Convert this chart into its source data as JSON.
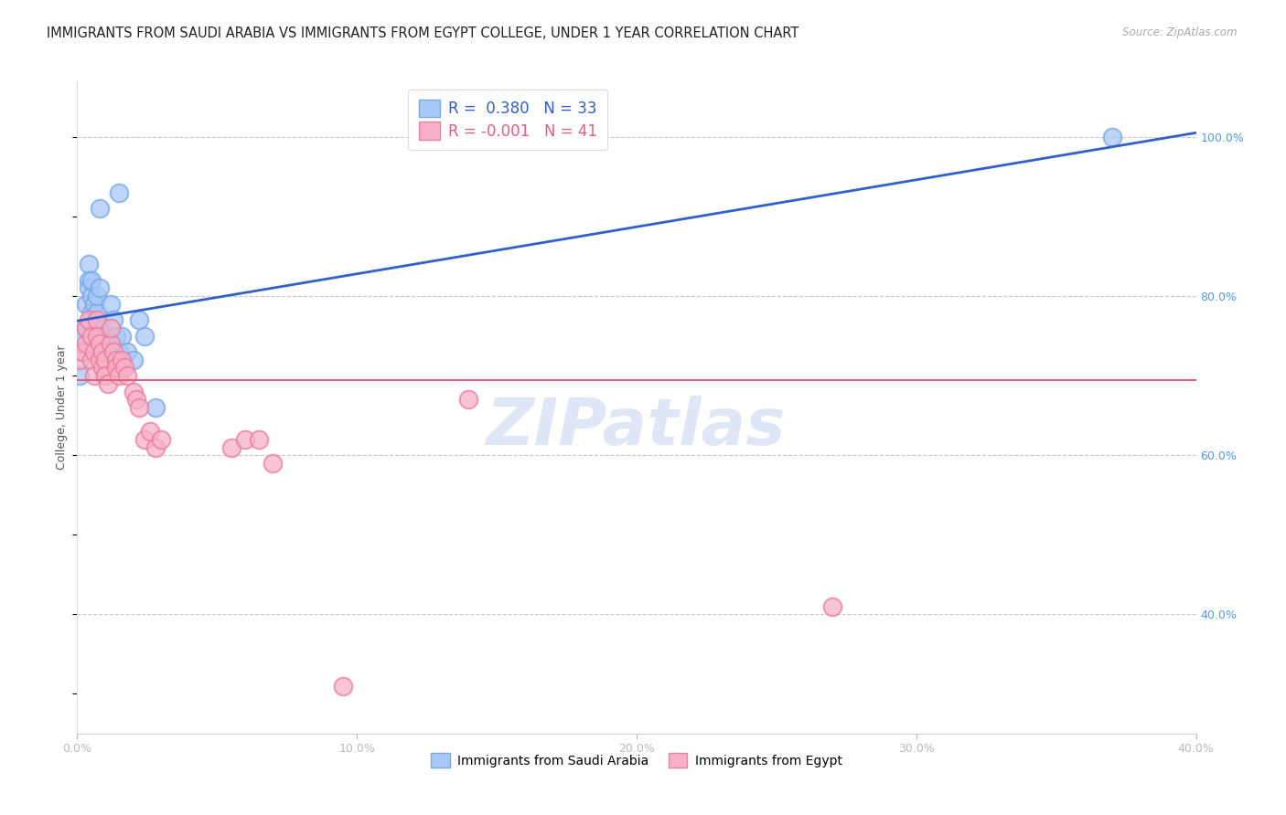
{
  "title": "IMMIGRANTS FROM SAUDI ARABIA VS IMMIGRANTS FROM EGYPT COLLEGE, UNDER 1 YEAR CORRELATION CHART",
  "source": "Source: ZipAtlas.com",
  "ylabel": "College, Under 1 year",
  "r_saudi": 0.38,
  "n_saudi": 33,
  "r_egypt": -0.001,
  "n_egypt": 41,
  "saudi_color": "#a8c8f8",
  "saudi_edge": "#78a8e8",
  "egypt_color": "#f8b0c8",
  "egypt_edge": "#e880a0",
  "blue_line_color": "#3060c8",
  "pink_line_color": "#e06080",
  "grid_color": "#c8c8c8",
  "background_color": "#ffffff",
  "xlim": [
    0.0,
    0.4
  ],
  "ylim": [
    0.25,
    1.07
  ],
  "right_yticks": [
    0.4,
    0.6,
    0.8,
    1.0
  ],
  "right_yticklabels": [
    "40.0%",
    "60.0%",
    "80.0%",
    "100.0%"
  ],
  "xticks": [
    0.0,
    0.1,
    0.2,
    0.3,
    0.4
  ],
  "xticklabels": [
    "0.0%",
    "10.0%",
    "20.0%",
    "30.0%",
    "40.0%"
  ],
  "watermark": "ZIPatlas",
  "saudi_x": [
    0.001,
    0.002,
    0.002,
    0.003,
    0.003,
    0.004,
    0.004,
    0.004,
    0.005,
    0.005,
    0.005,
    0.006,
    0.006,
    0.007,
    0.007,
    0.008,
    0.009,
    0.009,
    0.01,
    0.011,
    0.012,
    0.013,
    0.014,
    0.015,
    0.015,
    0.016,
    0.018,
    0.02,
    0.022,
    0.024,
    0.028,
    0.008,
    0.37
  ],
  "saudi_y": [
    0.7,
    0.73,
    0.75,
    0.76,
    0.79,
    0.84,
    0.82,
    0.81,
    0.78,
    0.8,
    0.82,
    0.79,
    0.76,
    0.78,
    0.8,
    0.81,
    0.76,
    0.75,
    0.74,
    0.73,
    0.79,
    0.77,
    0.75,
    0.93,
    0.73,
    0.75,
    0.73,
    0.72,
    0.77,
    0.75,
    0.66,
    0.91,
    1.0
  ],
  "egypt_x": [
    0.001,
    0.002,
    0.003,
    0.003,
    0.004,
    0.005,
    0.005,
    0.006,
    0.006,
    0.007,
    0.007,
    0.008,
    0.008,
    0.009,
    0.009,
    0.01,
    0.01,
    0.011,
    0.012,
    0.012,
    0.013,
    0.014,
    0.014,
    0.015,
    0.016,
    0.017,
    0.018,
    0.02,
    0.021,
    0.022,
    0.024,
    0.026,
    0.028,
    0.03,
    0.055,
    0.06,
    0.065,
    0.07,
    0.095,
    0.14,
    0.27
  ],
  "egypt_y": [
    0.72,
    0.73,
    0.74,
    0.76,
    0.77,
    0.75,
    0.72,
    0.73,
    0.7,
    0.77,
    0.75,
    0.74,
    0.72,
    0.71,
    0.73,
    0.72,
    0.7,
    0.69,
    0.74,
    0.76,
    0.73,
    0.72,
    0.71,
    0.7,
    0.72,
    0.71,
    0.7,
    0.68,
    0.67,
    0.66,
    0.62,
    0.63,
    0.61,
    0.62,
    0.61,
    0.62,
    0.62,
    0.59,
    0.31,
    0.67,
    0.41
  ],
  "pink_line_y": 0.695
}
